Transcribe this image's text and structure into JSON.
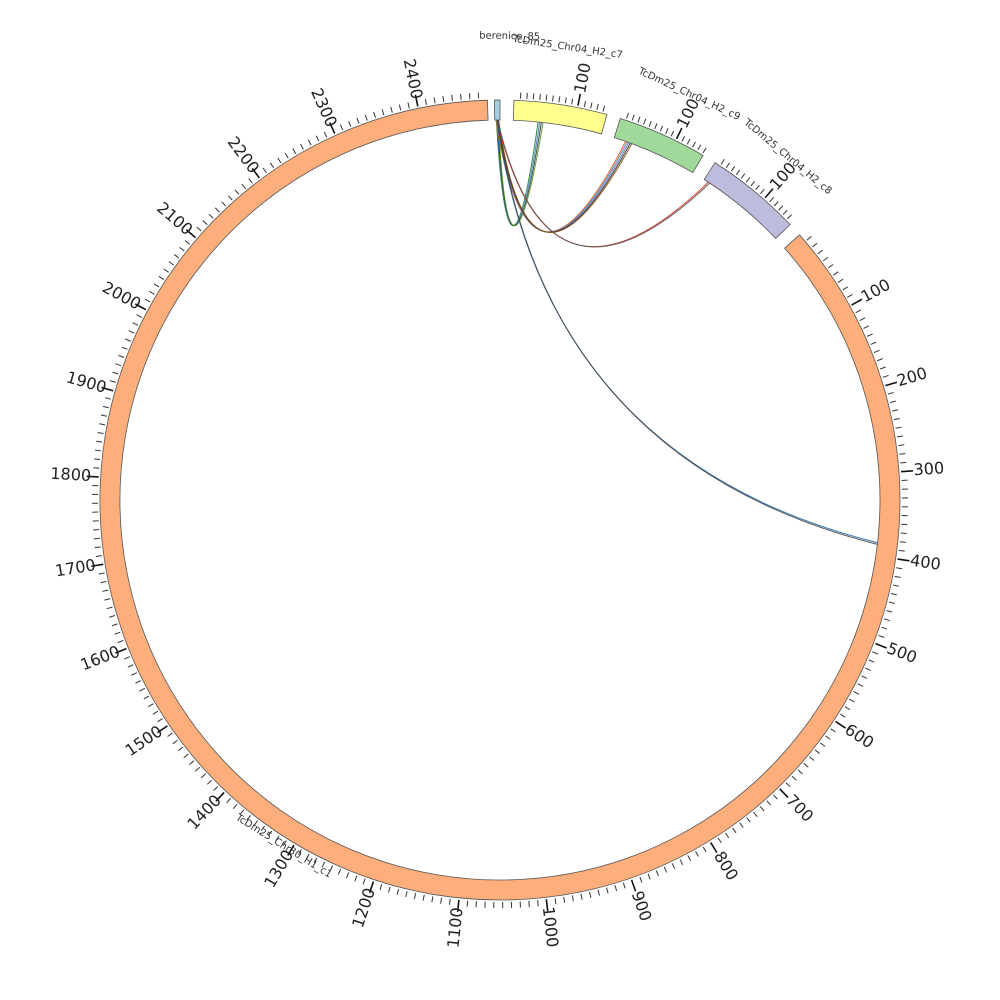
{
  "segments": [
    {
      "name": "berenice_85",
      "start": 0,
      "end": 2,
      "color": "#a6cee3"
    },
    {
      "name": "TcDm25_Chr04_H2_c7",
      "start": 0,
      "end": 147,
      "color": "#ffff8f"
    },
    {
      "name": "TcDm25_Chr04_H2_c9",
      "start": 0,
      "end": 152,
      "color": "#a1d99b"
    },
    {
      "name": "TcDm25_Chr04_H2_c8",
      "start": 0,
      "end": 160,
      "color": "#bcbddc"
    },
    {
      "name": "TcDm25_Chr30_H1_c1",
      "start": 0,
      "end": 2480,
      "color": "#fdae7b"
    }
  ],
  "ticks": {
    "major_step": 100,
    "minor_step": 10,
    "segment_labels": {
      "TcDm25_Chr04_H2_c7": [
        "100"
      ],
      "TcDm25_Chr04_H2_c9": [
        "100"
      ],
      "TcDm25_Chr04_H2_c8": [
        "100"
      ],
      "TcDm25_Chr30_H1_c1": [
        "100",
        "200",
        "300",
        "400",
        "500",
        "600",
        "700",
        "800",
        "900",
        "1000",
        "1100",
        "1200",
        "1300",
        "1400",
        "1500",
        "1600",
        "1700",
        "1800",
        "1900",
        "2000",
        "2100",
        "2200",
        "2300",
        "2400"
      ]
    }
  },
  "links": [
    {
      "from": "berenice_85",
      "from_pos": 1,
      "to": "TcDm25_Chr04_H2_c7",
      "to_pos": 45,
      "colors": [
        "#1b7837",
        "#2c7bb6",
        "#333333",
        "#4d9221"
      ]
    },
    {
      "from": "berenice_85",
      "from_pos": 1,
      "to": "TcDm25_Chr04_H2_c9",
      "to_pos": 27,
      "colors": [
        "#e6550d",
        "#3182bd",
        "#756bb1",
        "#222222",
        "#8c510a"
      ]
    },
    {
      "from": "berenice_85",
      "from_pos": 1,
      "to": "TcDm25_Chr04_H2_c8",
      "to_pos": 10,
      "colors": [
        "#d7301f",
        "#555555"
      ]
    },
    {
      "from": "berenice_85",
      "from_pos": 1,
      "to": "TcDm25_Chr30_H1_c1",
      "to_pos": 385,
      "colors": [
        "#2166ac",
        "#444444"
      ]
    }
  ]
}
